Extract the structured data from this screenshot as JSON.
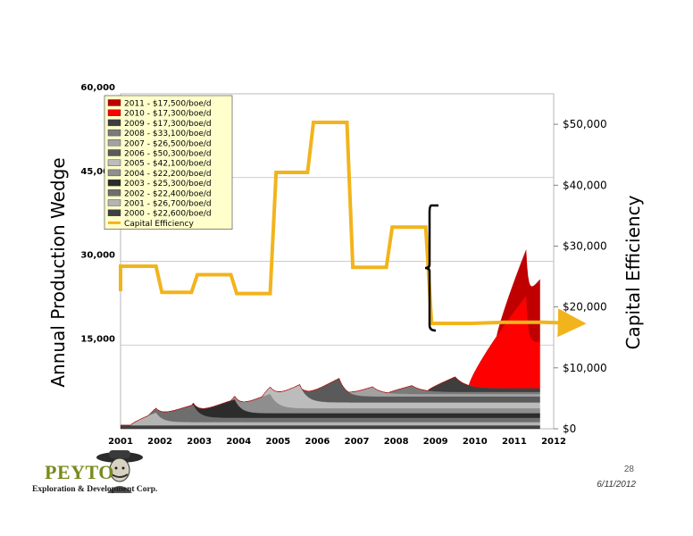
{
  "slide": {
    "page_number": "28",
    "date": "6/11/2012",
    "logo": {
      "name": "PEYTO",
      "subtitle": "Exploration & Development Corp."
    }
  },
  "chart_data": {
    "type": "area",
    "title": "",
    "ylabel_left": "Annual Production Wedge",
    "ylabel_right": "Capital Efficiency",
    "x_ticks": [
      "2001",
      "2002",
      "2003",
      "2004",
      "2005",
      "2006",
      "2007",
      "2008",
      "2009",
      "2010",
      "2011",
      "2012"
    ],
    "xlim": [
      2001,
      2012
    ],
    "ylim_left": [
      0,
      60000
    ],
    "yticks_left": [
      "15,000",
      "30,000",
      "45,000",
      "60,000"
    ],
    "ylim_right": [
      0,
      55000
    ],
    "yticks_right": [
      "$0",
      "$10,000",
      "$20,000",
      "$30,000",
      "$40,000",
      "$50,000"
    ],
    "grid": true,
    "legend_position": "top-left",
    "series": [
      {
        "name": "2000 - $22,600/boe/d",
        "color": "#404040",
        "start": 2000.0,
        "peak_time": 2000.1,
        "peak": 2500,
        "decay": 0.08,
        "tail": 0.25
      },
      {
        "name": "2001 - $26,700/boe/d",
        "color": "#b4b4b4",
        "start": 2001.25,
        "peak_time": 2001.9,
        "peak": 2300,
        "decay": 0.16,
        "tail": 0.25
      },
      {
        "name": "2002 - $22,400/boe/d",
        "color": "#6e6e6e",
        "start": 2001.7,
        "peak_time": 2002.85,
        "peak": 3100,
        "decay": 0.16,
        "tail": 0.25
      },
      {
        "name": "2003 - $25,300/boe/d",
        "color": "#2c2c2c",
        "start": 2002.8,
        "peak_time": 2003.9,
        "peak": 3300,
        "decay": 0.16,
        "tail": 0.25
      },
      {
        "name": "2004 - $22,200/boe/d",
        "color": "#8e8e8e",
        "start": 2003.8,
        "peak_time": 2004.8,
        "peak": 3500,
        "decay": 0.18,
        "tail": 0.25
      },
      {
        "name": "2005 - $42,100/boe/d",
        "color": "#bcbcbc",
        "start": 2004.6,
        "peak_time": 2005.55,
        "peak": 4200,
        "decay": 0.18,
        "tail": 0.25
      },
      {
        "name": "2006 - $50,300/boe/d",
        "color": "#5a5a5a",
        "start": 2005.6,
        "peak_time": 2006.55,
        "peak": 4300,
        "decay": 0.17,
        "tail": 0.25
      },
      {
        "name": "2007 - $26,500/boe/d",
        "color": "#a2a2a2",
        "start": 2006.8,
        "peak_time": 2007.4,
        "peak": 1700,
        "decay": 0.22,
        "tail": 0.25
      },
      {
        "name": "2008 - $33,100/boe/d",
        "color": "#7a7a7a",
        "start": 2007.8,
        "peak_time": 2008.4,
        "peak": 1500,
        "decay": 0.25,
        "tail": 0.25
      },
      {
        "name": "2009 - $17,300/boe/d",
        "color": "#3e3e3e",
        "start": 2008.8,
        "peak_time": 2009.5,
        "peak": 2700,
        "decay": 0.25,
        "tail": 0.25
      },
      {
        "name": "2010 - $17,300/boe/d",
        "color": "#ff0000",
        "start": 2009.85,
        "peak_time": 2011.3,
        "peak": 16500,
        "decay": 0.05,
        "tail": 0.5
      },
      {
        "name": "2011 - $17,500/boe/d",
        "color": "#c00000",
        "start": 2010.55,
        "peak_time": 2012,
        "peak": 14000,
        "decay": 0.0,
        "tail": 0.5
      }
    ],
    "x_end": 2011.65,
    "capital_efficiency": {
      "name": "Capital Efficiency",
      "color": "#f2b41c",
      "points": [
        [
          2001.0,
          22600
        ],
        [
          2001.0,
          26700
        ],
        [
          2001.9,
          26700
        ],
        [
          2002.05,
          22400
        ],
        [
          2002.8,
          22400
        ],
        [
          2002.95,
          25300
        ],
        [
          2003.8,
          25300
        ],
        [
          2003.95,
          22200
        ],
        [
          2004.8,
          22200
        ],
        [
          2004.95,
          42100
        ],
        [
          2005.75,
          42100
        ],
        [
          2005.9,
          50300
        ],
        [
          2006.75,
          50300
        ],
        [
          2006.9,
          26500
        ],
        [
          2007.75,
          26500
        ],
        [
          2007.9,
          33100
        ],
        [
          2008.75,
          33100
        ],
        [
          2008.9,
          17300
        ],
        [
          2009.75,
          17300
        ],
        [
          2009.9,
          17300
        ],
        [
          2010.75,
          17500
        ],
        [
          2011.65,
          17500
        ]
      ],
      "arrow_to": [
        2012.65,
        17300
      ]
    }
  }
}
